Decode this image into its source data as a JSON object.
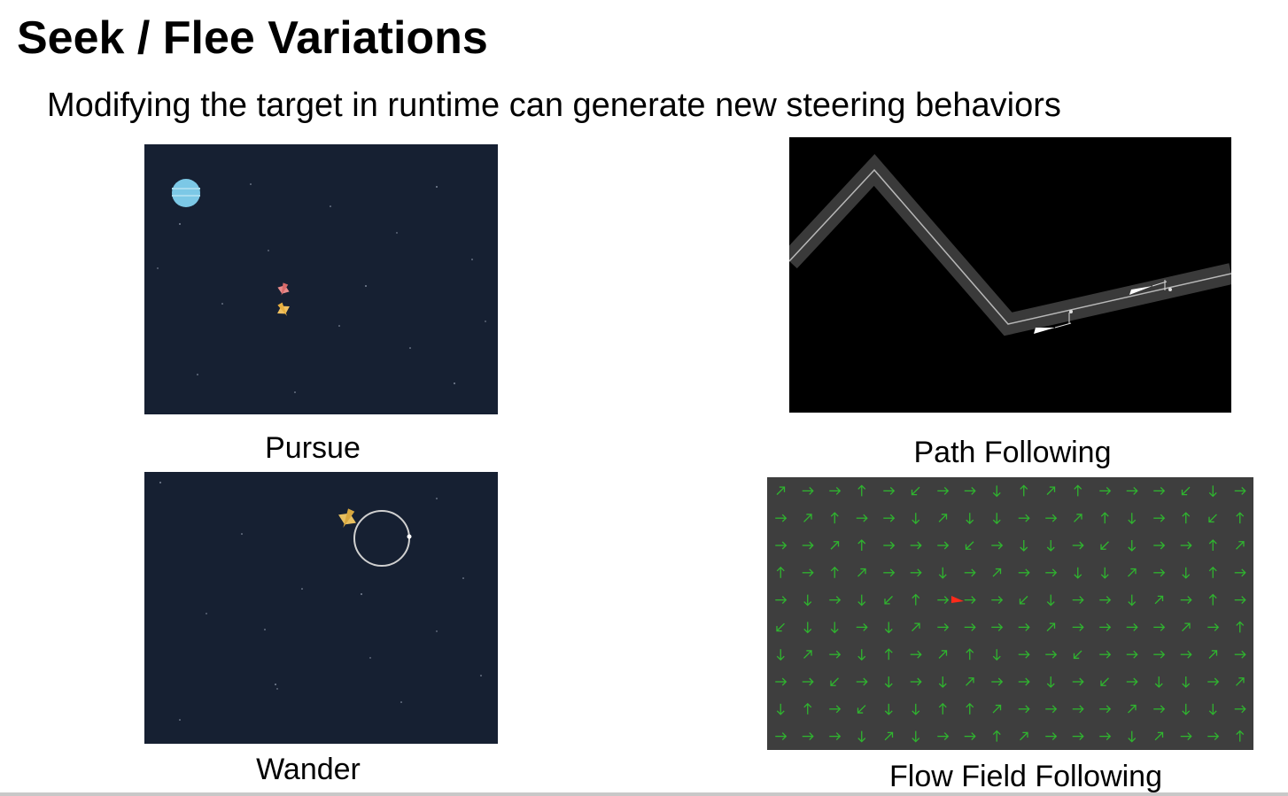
{
  "slide": {
    "title": "Seek / Flee Variations",
    "subtitle": "Modifying the target in runtime can generate new steering behaviors"
  },
  "panels": {
    "pursue": {
      "caption": "Pursue"
    },
    "path_following": {
      "caption": "Path Following"
    },
    "wander": {
      "caption": "Wander"
    },
    "flow_field": {
      "caption": "Flow Field Following"
    }
  },
  "colors": {
    "space_bg": "#162032",
    "path_bg": "#000000",
    "flow_bg": "#3e3e3e",
    "flow_arrow": "#2fb52f",
    "flow_agent": "#ff2a1a"
  },
  "flow_field_grid": {
    "rows": [
      "RRRURDRRDURURRRDDR",
      "RRURRDUDDRRRUDRUDU",
      "RRRURRRDRDDRDDRRUR",
      "URUURRDRRRRDDRRDUR",
      "RDRDDURRRDDRRDRRUR",
      "DDDRDRRRRRRRRRRRRU",
      "DRRDURRUDRRDRRRRRR",
      "RRDRDRDRRRDRDRDDRR",
      "DURDDDUURRRRRRRDDR",
      "RRRDRDRRURRRRDRRRU"
    ]
  }
}
